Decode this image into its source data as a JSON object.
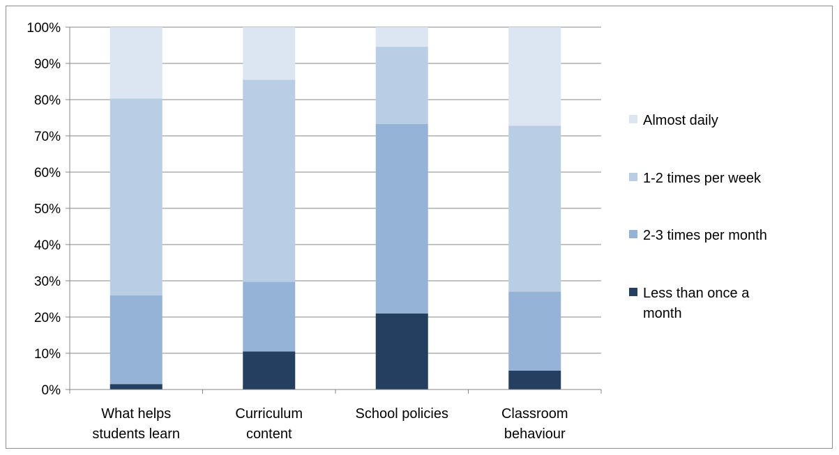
{
  "chart_data": {
    "type": "bar",
    "stacked": "percent",
    "categories": [
      [
        "What helps",
        "students learn"
      ],
      [
        "Curriculum",
        "content"
      ],
      [
        "School policies"
      ],
      [
        "Classroom",
        "behaviour"
      ]
    ],
    "series": [
      {
        "name": "Less than once a month",
        "legend_lines": [
          "Less than once a",
          "month"
        ],
        "color": "#243f60",
        "values": [
          1.5,
          10.5,
          21.0,
          5.2
        ]
      },
      {
        "name": "2-3 times per month",
        "legend_lines": [
          "2-3 times per month"
        ],
        "color": "#95b3d7",
        "values": [
          24.5,
          19.2,
          52.3,
          21.8
        ]
      },
      {
        "name": "1-2 times per week",
        "legend_lines": [
          "1-2 times per week"
        ],
        "color": "#b9cde5",
        "values": [
          54.3,
          55.8,
          21.3,
          45.8
        ]
      },
      {
        "name": "Almost daily",
        "legend_lines": [
          "Almost daily"
        ],
        "color": "#dce6f2",
        "values": [
          19.7,
          14.5,
          5.4,
          27.2
        ]
      }
    ],
    "ylim": [
      0,
      100
    ],
    "yticks": [
      "0%",
      "10%",
      "20%",
      "30%",
      "40%",
      "50%",
      "60%",
      "70%",
      "80%",
      "90%",
      "100%"
    ],
    "grid": true,
    "legend_position": "right",
    "legend_order": [
      "Almost daily",
      "1-2 times per week",
      "2-3 times per month",
      "Less than once a month"
    ],
    "title": "",
    "xlabel": "",
    "ylabel": ""
  }
}
